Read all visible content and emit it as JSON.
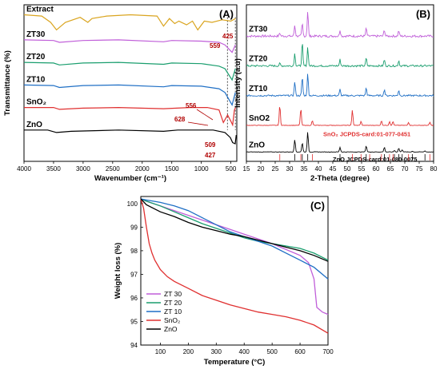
{
  "chart_data": [
    {
      "type": "line",
      "panel": "(A)",
      "xlabel": "Wavenumber (cm⁻¹)",
      "ylabel": "Transmittance (%)",
      "xlim": [
        4000,
        400
      ],
      "x_reversed": true,
      "xticks": [
        4000,
        3500,
        3000,
        2500,
        2000,
        1500,
        1000,
        500
      ],
      "y_ticks_shown": false,
      "series": [
        {
          "name": "Extract",
          "color": "#DAA520",
          "offset": 92,
          "points": [
            [
              4000,
              0
            ],
            [
              3700,
              -1
            ],
            [
              3550,
              -6
            ],
            [
              3450,
              -12
            ],
            [
              3300,
              -6
            ],
            [
              3050,
              -2
            ],
            [
              2920,
              -6
            ],
            [
              2850,
              -3
            ],
            [
              2600,
              -1
            ],
            [
              2200,
              0
            ],
            [
              1750,
              -1
            ],
            [
              1640,
              -9
            ],
            [
              1540,
              -3
            ],
            [
              1450,
              -7
            ],
            [
              1380,
              -5
            ],
            [
              1250,
              -8
            ],
            [
              1150,
              -5
            ],
            [
              1060,
              -12
            ],
            [
              950,
              -5
            ],
            [
              820,
              -6
            ],
            [
              650,
              -4
            ],
            [
              500,
              -5
            ],
            [
              420,
              -3
            ]
          ]
        },
        {
          "name": "ZT30",
          "color": "#C05FD9",
          "offset": 72,
          "points": [
            [
              4000,
              0
            ],
            [
              3500,
              -0.5
            ],
            [
              3400,
              -2
            ],
            [
              3000,
              -0.5
            ],
            [
              2400,
              0
            ],
            [
              1640,
              -1.5
            ],
            [
              1500,
              -0.5
            ],
            [
              1000,
              -1
            ],
            [
              700,
              -2
            ],
            [
              600,
              -4
            ],
            [
              480,
              -10
            ],
            [
              425,
              -4
            ]
          ]
        },
        {
          "name": "ZT20",
          "color": "#1A9E6E",
          "offset": 54,
          "points": [
            [
              4000,
              0
            ],
            [
              3500,
              -0.5
            ],
            [
              3400,
              -2
            ],
            [
              3000,
              -0.5
            ],
            [
              2400,
              0
            ],
            [
              1640,
              -1.5
            ],
            [
              1500,
              -0.5
            ],
            [
              1000,
              -1
            ],
            [
              700,
              -3
            ],
            [
              600,
              -5
            ],
            [
              480,
              -14
            ],
            [
              425,
              -5
            ]
          ]
        },
        {
          "name": "ZT10",
          "color": "#1F6FC5",
          "offset": 36,
          "points": [
            [
              4000,
              0
            ],
            [
              3500,
              -0.5
            ],
            [
              3400,
              -2
            ],
            [
              3000,
              -0.5
            ],
            [
              2400,
              0
            ],
            [
              1640,
              -1.5
            ],
            [
              1500,
              -0.5
            ],
            [
              1000,
              -1
            ],
            [
              700,
              -3
            ],
            [
              600,
              -6
            ],
            [
              480,
              -16
            ],
            [
              425,
              -6
            ]
          ]
        },
        {
          "name": "SnO₂",
          "color": "#E03030",
          "offset": 18,
          "points": [
            [
              4000,
              0
            ],
            [
              3500,
              0
            ],
            [
              3400,
              -1.5
            ],
            [
              3000,
              -0.5
            ],
            [
              2400,
              0
            ],
            [
              1640,
              -1
            ],
            [
              1200,
              0
            ],
            [
              900,
              0
            ],
            [
              700,
              -2
            ],
            [
              628,
              -12
            ],
            [
              556,
              -6
            ],
            [
              500,
              -11
            ],
            [
              470,
              -14
            ],
            [
              440,
              -2
            ],
            [
              420,
              0
            ]
          ]
        },
        {
          "name": "ZnO",
          "color": "#000000",
          "offset": 0,
          "points": [
            [
              4000,
              0
            ],
            [
              3600,
              0
            ],
            [
              3450,
              -2
            ],
            [
              3200,
              -1
            ],
            [
              2400,
              0
            ],
            [
              1640,
              -1
            ],
            [
              1400,
              0
            ],
            [
              800,
              0
            ],
            [
              600,
              -2
            ],
            [
              509,
              -6
            ],
            [
              470,
              -10
            ],
            [
              427,
              -11
            ],
            [
              410,
              -4
            ]
          ]
        }
      ],
      "annotations": [
        {
          "text": "425",
          "x": 425
        },
        {
          "text": "559",
          "x": 559
        },
        {
          "text": "556",
          "x": 556
        },
        {
          "text": "628",
          "x": 628
        },
        {
          "text": "509",
          "x": 509
        },
        {
          "text": "427",
          "x": 427
        }
      ]
    },
    {
      "type": "line",
      "panel": "(B)",
      "xlabel": "2-Theta (degree)",
      "ylabel": "Intensity (a.u)",
      "xlim": [
        15,
        80
      ],
      "xticks": [
        15,
        20,
        25,
        30,
        35,
        40,
        45,
        50,
        55,
        60,
        65,
        70,
        75,
        80
      ],
      "y_ticks_shown": false,
      "series": [
        {
          "name": "ZT30",
          "color": "#C05FD9",
          "offset": 80,
          "noise": 1.4,
          "peaks": [
            [
              31.8,
              7
            ],
            [
              34.4,
              8
            ],
            [
              36.3,
              16
            ],
            [
              47.5,
              4
            ],
            [
              56.6,
              5
            ],
            [
              62.9,
              4
            ],
            [
              67.9,
              3.5
            ],
            [
              26.6,
              2
            ]
          ]
        },
        {
          "name": "ZT20",
          "color": "#1A9E6E",
          "offset": 61,
          "noise": 1.2,
          "peaks": [
            [
              31.8,
              8
            ],
            [
              34.4,
              15
            ],
            [
              36.3,
              12
            ],
            [
              47.5,
              4
            ],
            [
              56.6,
              5
            ],
            [
              62.9,
              4
            ],
            [
              67.9,
              3.5
            ],
            [
              26.6,
              1.5
            ]
          ]
        },
        {
          "name": "ZT10",
          "color": "#1F6FC5",
          "offset": 42,
          "noise": 1.0,
          "peaks": [
            [
              31.8,
              9
            ],
            [
              34.4,
              12
            ],
            [
              36.3,
              14
            ],
            [
              47.5,
              4
            ],
            [
              56.6,
              5
            ],
            [
              62.9,
              4
            ],
            [
              67.9,
              3.5
            ]
          ]
        },
        {
          "name": "SnO2",
          "color": "#E03030",
          "offset": 23,
          "noise": 0.3,
          "peaks": [
            [
              26.6,
              13
            ],
            [
              33.9,
              11
            ],
            [
              37.9,
              3
            ],
            [
              51.8,
              10
            ],
            [
              54.8,
              2.5
            ],
            [
              61.9,
              3
            ],
            [
              64.7,
              2.5
            ],
            [
              65.9,
              2.5
            ],
            [
              71.3,
              2
            ],
            [
              78.7,
              2
            ]
          ]
        },
        {
          "name": "ZnO",
          "color": "#000000",
          "offset": 6,
          "noise": 0.25,
          "peaks": [
            [
              31.8,
              8
            ],
            [
              34.4,
              6
            ],
            [
              36.3,
              13
            ],
            [
              47.5,
              3
            ],
            [
              56.6,
              4
            ],
            [
              62.9,
              3
            ],
            [
              66.4,
              1
            ],
            [
              67.9,
              2.5
            ],
            [
              69.1,
              1.5
            ],
            [
              72.6,
              0.5
            ],
            [
              77,
              0.8
            ]
          ]
        }
      ],
      "ref_labels": [
        {
          "text": "SnO₂ JCPDS-card:01-077-0451",
          "color": "#E03030"
        },
        {
          "text": "ZnO JCPDS-card:01-080-0075",
          "color": "#000000"
        }
      ],
      "ref_ticks_sno2": [
        26.6,
        33.9,
        37.9,
        51.8,
        54.8,
        57.8,
        61.9,
        64.7,
        65.9,
        71.3,
        78.7
      ],
      "ref_ticks_zno": [
        31.8,
        34.4,
        36.3,
        47.5,
        56.6,
        62.9,
        66.4,
        67.9,
        69.1,
        72.6,
        77.0
      ]
    },
    {
      "type": "line",
      "panel": "(C)",
      "xlabel": "Temperature (°C)",
      "ylabel": "Weight loss (%)",
      "xlim": [
        30,
        700
      ],
      "ylim": [
        94,
        100.3
      ],
      "xticks": [
        100,
        200,
        300,
        400,
        500,
        600,
        700
      ],
      "yticks": [
        94,
        95,
        96,
        97,
        98,
        99,
        100
      ],
      "legend": "bottom-left",
      "series": [
        {
          "name": "ZT 30",
          "color": "#C05FD9",
          "x": [
            30,
            50,
            100,
            150,
            200,
            250,
            300,
            350,
            400,
            450,
            500,
            550,
            600,
            630,
            650,
            660,
            680,
            700
          ],
          "y": [
            100.2,
            100.1,
            99.9,
            99.7,
            99.5,
            99.3,
            99.1,
            98.9,
            98.7,
            98.5,
            98.3,
            98.05,
            97.8,
            97.5,
            96.8,
            95.6,
            95.4,
            95.3
          ]
        },
        {
          "name": "ZT 20",
          "color": "#1A9E6E",
          "x": [
            30,
            50,
            100,
            150,
            200,
            250,
            300,
            350,
            400,
            450,
            500,
            550,
            600,
            650,
            700
          ],
          "y": [
            100.2,
            100.1,
            99.9,
            99.65,
            99.4,
            99.15,
            98.95,
            98.75,
            98.55,
            98.4,
            98.3,
            98.2,
            98.1,
            97.9,
            97.6
          ]
        },
        {
          "name": "ZT 10",
          "color": "#1F6FC5",
          "x": [
            30,
            50,
            100,
            150,
            200,
            250,
            300,
            350,
            400,
            450,
            500,
            550,
            600,
            650,
            700
          ],
          "y": [
            100.2,
            100.15,
            100.05,
            99.9,
            99.7,
            99.4,
            99.1,
            98.8,
            98.6,
            98.4,
            98.2,
            97.9,
            97.6,
            97.3,
            96.8
          ]
        },
        {
          "name": "SnO₂",
          "color": "#E03030",
          "x": [
            30,
            40,
            50,
            60,
            70,
            80,
            100,
            125,
            150,
            200,
            250,
            300,
            350,
            400,
            450,
            500,
            550,
            600,
            650,
            700
          ],
          "y": [
            100.2,
            99.8,
            99.0,
            98.3,
            97.9,
            97.6,
            97.2,
            96.9,
            96.7,
            96.4,
            96.1,
            95.9,
            95.7,
            95.55,
            95.4,
            95.3,
            95.2,
            95.05,
            94.85,
            94.5
          ]
        },
        {
          "name": "ZnO",
          "color": "#000000",
          "x": [
            30,
            50,
            100,
            150,
            200,
            250,
            300,
            350,
            400,
            450,
            500,
            550,
            600,
            650,
            700
          ],
          "y": [
            100.2,
            99.95,
            99.65,
            99.45,
            99.2,
            99.0,
            98.85,
            98.7,
            98.6,
            98.45,
            98.3,
            98.15,
            98.0,
            97.8,
            97.55
          ]
        }
      ]
    }
  ]
}
